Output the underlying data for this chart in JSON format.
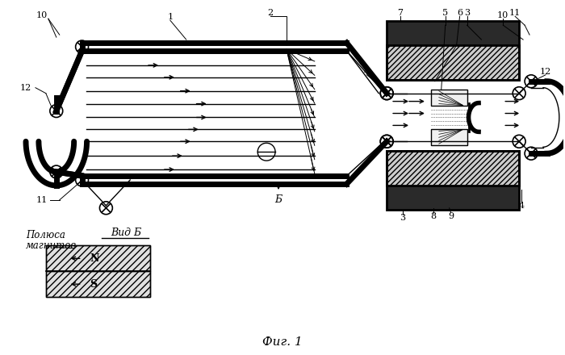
{
  "bg_color": "#ffffff",
  "line_color": "#000000",
  "title": "Фиг. 1",
  "vid_b": "Вид Б",
  "b_label": "Б",
  "polyusa": "Полюса",
  "magnitov": "магнитов",
  "N_label": "N",
  "S_label": "S"
}
